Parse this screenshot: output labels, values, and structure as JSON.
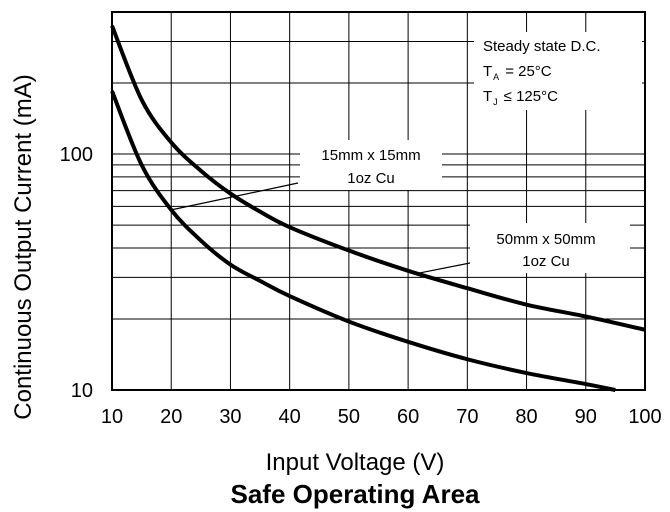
{
  "chart_data": {
    "type": "line",
    "title": "Safe Operating Area",
    "xlabel": "Input Voltage (V)",
    "ylabel": "Continuous Output Current (mA)",
    "xlim": [
      10,
      100
    ],
    "ylim": [
      10,
      400
    ],
    "yscale": "log",
    "grid": true,
    "x_ticks": [
      "10",
      "20",
      "30",
      "40",
      "50",
      "60",
      "70",
      "80",
      "90",
      "100"
    ],
    "y_ticks": [
      "10",
      "100"
    ],
    "series": [
      {
        "name": "15mm x 15mm 1oz Cu",
        "label_lines": [
          "15mm x 15mm",
          "1oz Cu"
        ],
        "x": [
          10,
          15,
          20,
          25,
          30,
          35,
          40,
          50,
          60,
          70,
          80,
          90,
          100
        ],
        "y": [
          350,
          170,
          112,
          85,
          68,
          57,
          49,
          39,
          32,
          27,
          23,
          20.5,
          18
        ]
      },
      {
        "name": "50mm x 50mm 1oz Cu",
        "label_lines": [
          "50mm x 50mm",
          "1oz Cu"
        ],
        "x": [
          10,
          15,
          20,
          25,
          30,
          35,
          40,
          50,
          60,
          70,
          80,
          90,
          95
        ],
        "y": [
          185,
          90,
          58,
          43,
          34,
          29,
          25,
          19.5,
          16,
          13.5,
          11.8,
          10.6,
          10
        ]
      }
    ],
    "conditions": {
      "line1": "Steady state D.C.",
      "ta_symbol": "T",
      "ta_sub": "A",
      "ta_value": "= 25°C",
      "tj_symbol": "T",
      "tj_sub": "J",
      "tj_value": "≤ 125°C"
    },
    "legend_placement": "top-right"
  }
}
